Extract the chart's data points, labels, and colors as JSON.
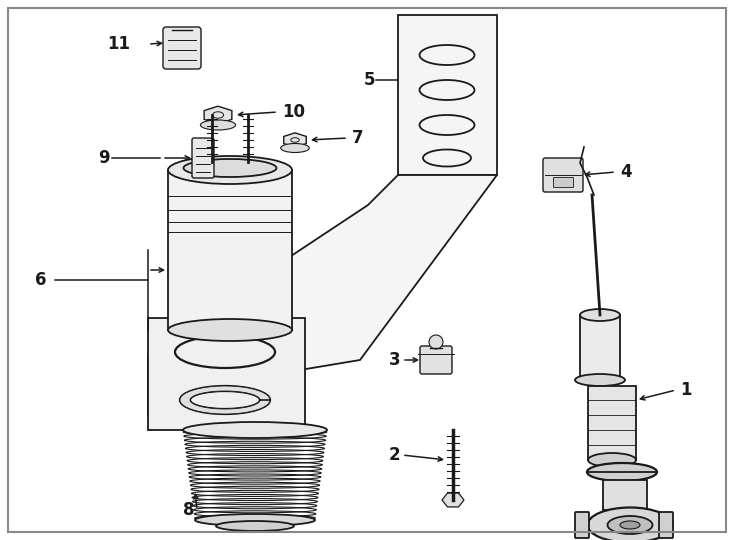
{
  "bg_color": "#ffffff",
  "line_color": "#1a1a1a",
  "figsize": [
    7.34,
    5.4
  ],
  "dpi": 100,
  "label_fontsize": 12
}
